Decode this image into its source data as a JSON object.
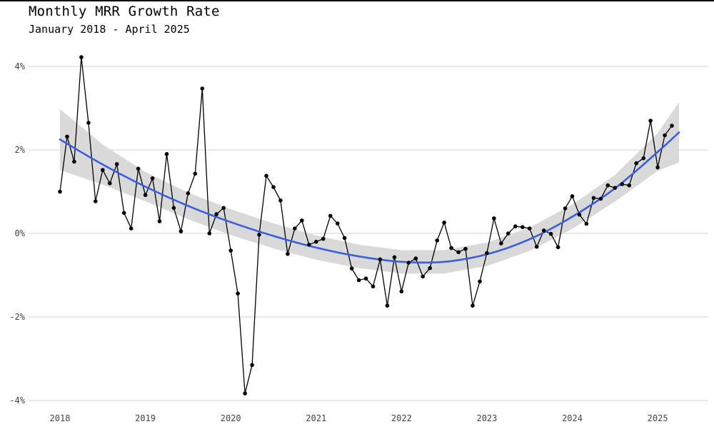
{
  "chart_data": {
    "type": "line",
    "title": "Monthly MRR Growth Rate",
    "subtitle": "January 2018 - April 2025",
    "xlabel": "",
    "ylabel": "",
    "x_range": [
      2018.0,
      2025.25
    ],
    "ylim": [
      -4,
      4
    ],
    "y_ticks": [
      {
        "value": 4,
        "label": "4%"
      },
      {
        "value": 2,
        "label": "2%"
      },
      {
        "value": 0,
        "label": "0%"
      },
      {
        "value": -2,
        "label": "-2%"
      },
      {
        "value": -4,
        "label": "-4%"
      }
    ],
    "x_ticks": [
      {
        "value": 2018,
        "label": "2018"
      },
      {
        "value": 2019,
        "label": "2019"
      },
      {
        "value": 2020,
        "label": "2020"
      },
      {
        "value": 2021,
        "label": "2021"
      },
      {
        "value": 2022,
        "label": "2022"
      },
      {
        "value": 2023,
        "label": "2023"
      },
      {
        "value": 2024,
        "label": "2024"
      },
      {
        "value": 2025,
        "label": "2025"
      }
    ],
    "grid": "horizontal",
    "colors": {
      "line": "#000000",
      "point": "#000000",
      "trend": "#3b5fdc",
      "band": "#d9d9d9",
      "grid": "#d3d3d3"
    },
    "series": [
      {
        "start": "2018-01",
        "frequency": "monthly",
        "values": [
          1.0,
          2.32,
          1.72,
          4.22,
          2.65,
          0.77,
          1.52,
          1.2,
          1.66,
          0.49,
          0.12,
          1.55,
          0.92,
          1.32,
          0.29,
          1.9,
          0.61,
          0.05,
          0.96,
          1.43,
          3.47,
          0.0,
          0.46,
          0.61,
          -0.41,
          -1.44,
          -3.83,
          -3.15,
          -0.03,
          1.38,
          1.11,
          0.79,
          -0.49,
          0.12,
          0.31,
          -0.27,
          -0.2,
          -0.13,
          0.42,
          0.24,
          -0.11,
          -0.84,
          -1.12,
          -1.08,
          -1.27,
          -0.62,
          -1.73,
          -0.57,
          -1.39,
          -0.7,
          -0.6,
          -1.03,
          -0.83,
          -0.17,
          0.26,
          -0.35,
          -0.45,
          -0.37,
          -1.73,
          -1.15,
          -0.47,
          0.36,
          -0.24,
          0.0,
          0.17,
          0.15,
          0.12,
          -0.32,
          0.07,
          -0.01,
          -0.33,
          0.6,
          0.89,
          0.45,
          0.23,
          0.85,
          0.83,
          1.15,
          1.09,
          1.18,
          1.15,
          1.68,
          1.8,
          2.7,
          1.58,
          2.35,
          2.58
        ]
      }
    ],
    "trend": {
      "type": "quadratic",
      "x": [
        2018.0,
        2018.5,
        2019.0,
        2019.5,
        2020.0,
        2020.5,
        2021.0,
        2021.5,
        2022.0,
        2022.5,
        2023.0,
        2023.5,
        2024.0,
        2024.5,
        2025.0,
        2025.25
      ],
      "y": [
        2.25,
        1.65,
        1.12,
        0.66,
        0.27,
        -0.06,
        -0.34,
        -0.55,
        -0.68,
        -0.68,
        -0.5,
        -0.14,
        0.4,
        1.08,
        1.95,
        2.42
      ],
      "band_half_width": [
        0.73,
        0.48,
        0.35,
        0.32,
        0.31,
        0.3,
        0.29,
        0.28,
        0.28,
        0.28,
        0.28,
        0.28,
        0.29,
        0.32,
        0.45,
        0.72
      ]
    }
  }
}
